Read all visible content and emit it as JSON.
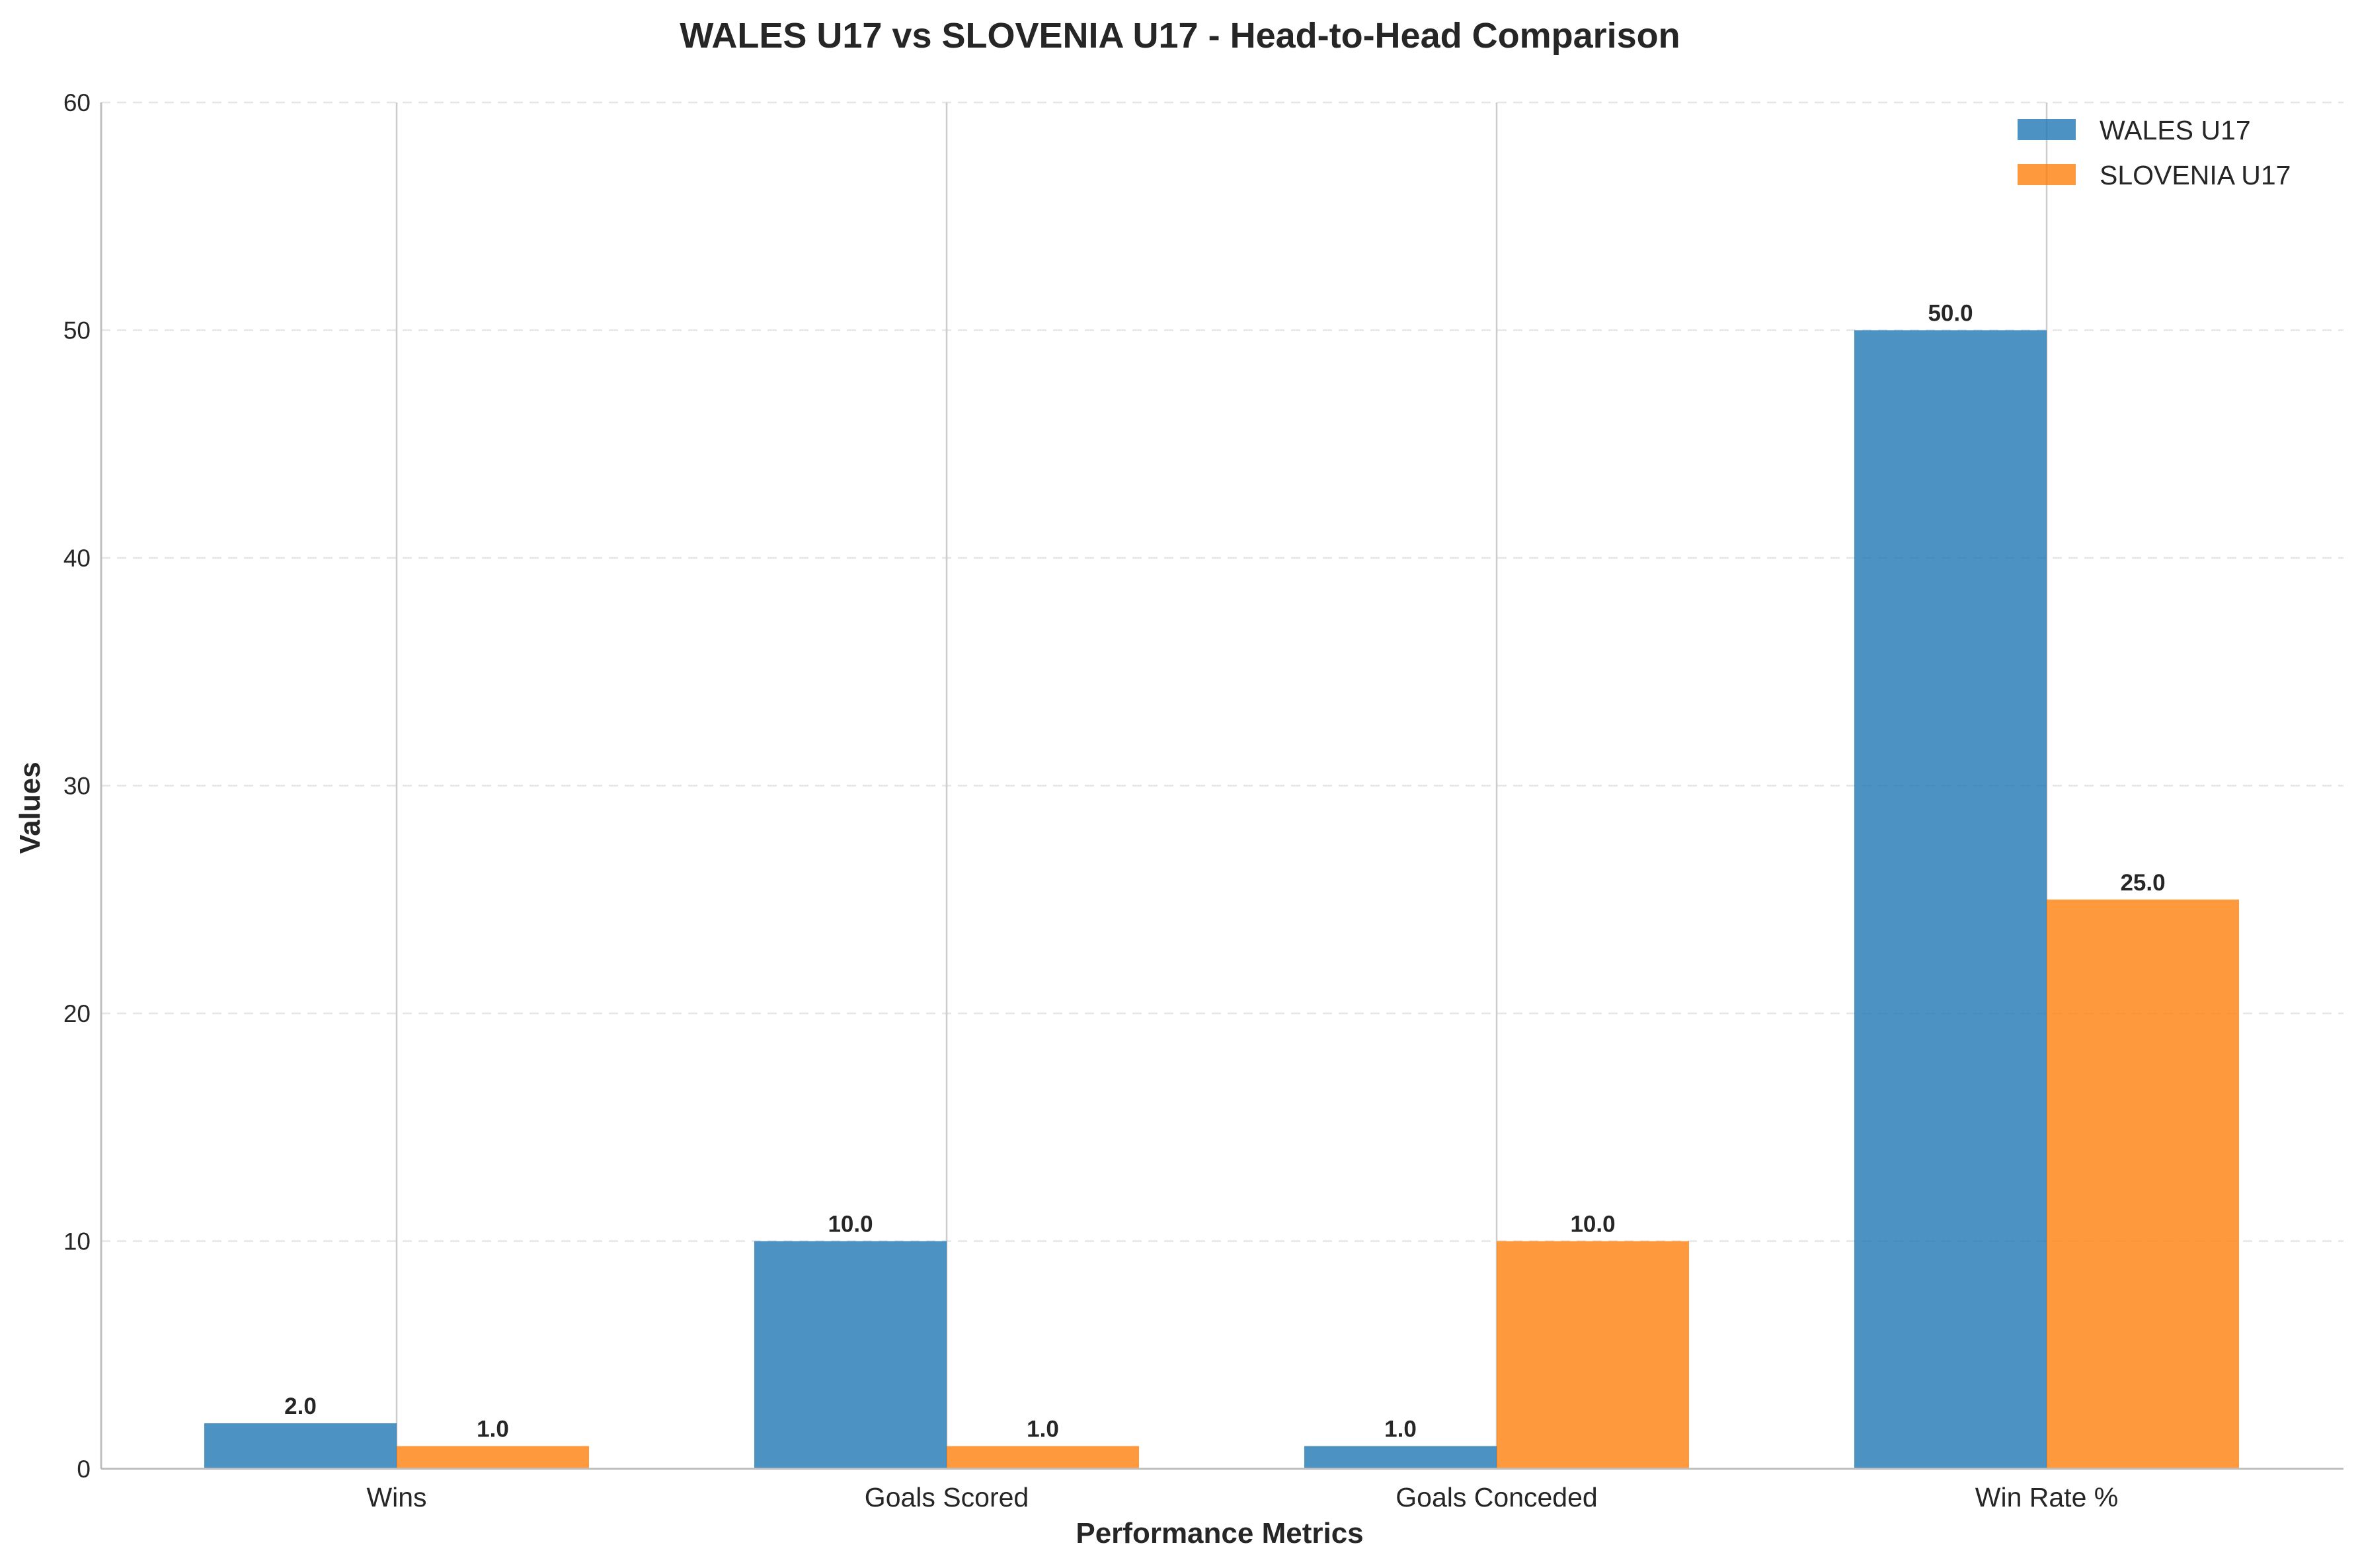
{
  "chart_data": {
    "type": "bar",
    "title": "WALES U17 vs SLOVENIA U17 - Head-to-Head Comparison",
    "xlabel": "Performance Metrics",
    "ylabel": "Values",
    "categories": [
      "Wins",
      "Goals Scored",
      "Goals Conceded",
      "Win Rate %"
    ],
    "series": [
      {
        "name": "WALES U17",
        "color": "#1f77b4",
        "values": [
          2.0,
          10.0,
          1.0,
          50.0
        ],
        "labels": [
          "2.0",
          "10.0",
          "1.0",
          "50.0"
        ]
      },
      {
        "name": "SLOVENIA U17",
        "color": "#ff7f0e",
        "values": [
          1.0,
          1.0,
          10.0,
          25.0
        ],
        "labels": [
          "1.0",
          "1.0",
          "10.0",
          "25.0"
        ]
      }
    ],
    "ylim": [
      0,
      60
    ],
    "yticks": [
      0,
      10,
      20,
      30,
      40,
      50,
      60
    ],
    "ytick_labels": [
      "0",
      "10",
      "20",
      "30",
      "40",
      "50",
      "60"
    ],
    "grid": true,
    "legend_position": "top-right"
  }
}
